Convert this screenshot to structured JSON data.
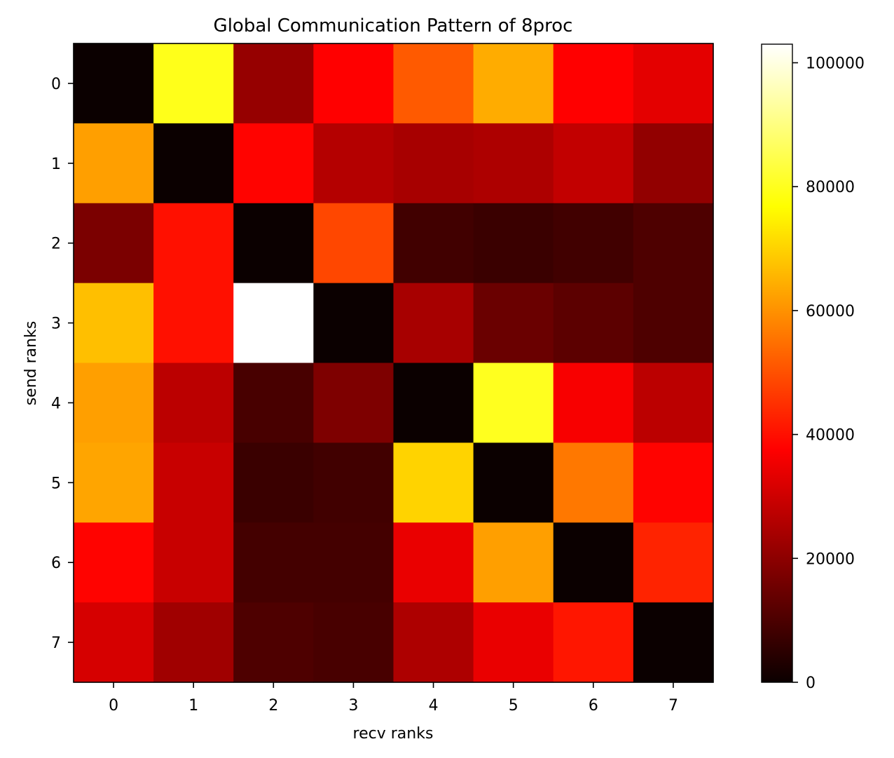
{
  "chart_data": {
    "type": "heatmap",
    "title": "Global Communication Pattern of 8proc",
    "xlabel": "recv ranks",
    "ylabel": "send ranks",
    "x_categories": [
      "0",
      "1",
      "2",
      "3",
      "4",
      "5",
      "6",
      "7"
    ],
    "y_categories": [
      "0",
      "1",
      "2",
      "3",
      "4",
      "5",
      "6",
      "7"
    ],
    "colormap": "hot",
    "vmin": 0,
    "vmax": 103000,
    "colorbar_ticks": [
      0,
      20000,
      40000,
      60000,
      80000,
      100000
    ],
    "values": [
      [
        0,
        79500,
        20500,
        37500,
        51500,
        64000,
        36000,
        32000
      ],
      [
        62000,
        0,
        38000,
        25000,
        23000,
        24000,
        27000,
        20000
      ],
      [
        16500,
        40000,
        0,
        48500,
        8000,
        7000,
        8000,
        10000
      ],
      [
        67000,
        40000,
        103000,
        0,
        23000,
        14000,
        12000,
        10000
      ],
      [
        62000,
        26000,
        9000,
        17000,
        0,
        80000,
        35000,
        26000
      ],
      [
        63000,
        28000,
        7000,
        8000,
        70000,
        0,
        56000,
        38000
      ],
      [
        38000,
        28000,
        8500,
        8500,
        33000,
        62000,
        0,
        43000
      ],
      [
        30000,
        22000,
        10000,
        9000,
        24000,
        33000,
        41000,
        0
      ]
    ]
  }
}
